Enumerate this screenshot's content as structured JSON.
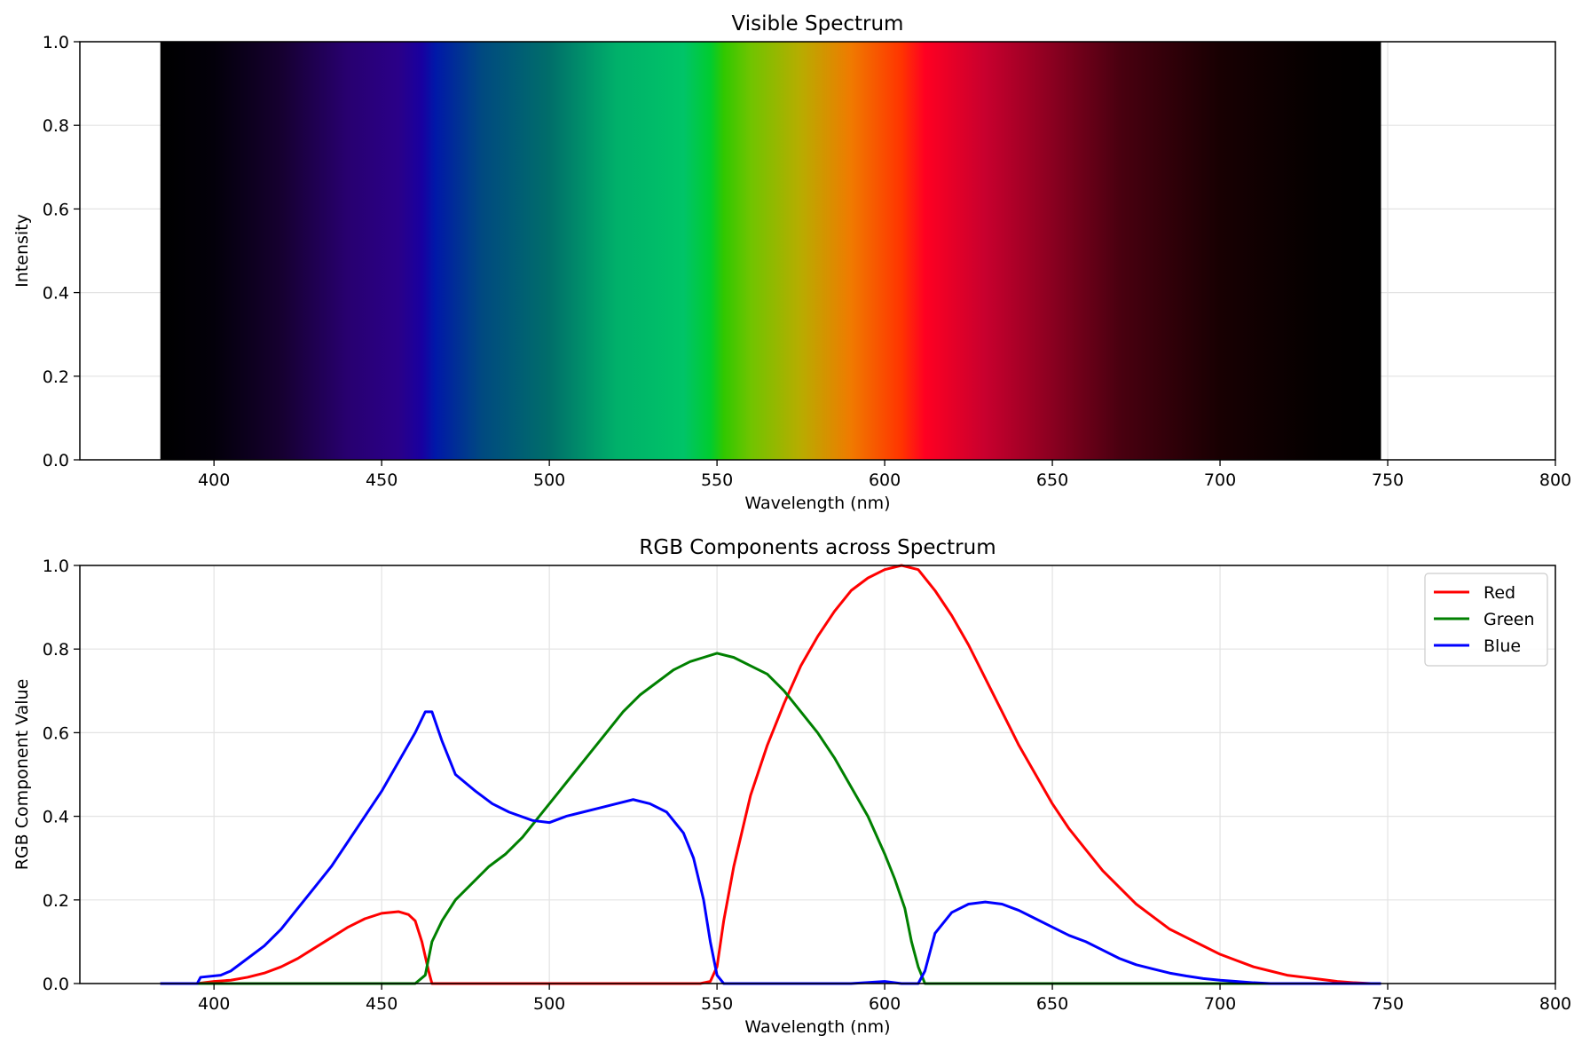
{
  "chart_data": [
    {
      "type": "heatmap",
      "title": "Visible Spectrum",
      "xlabel": "Wavelength (nm)",
      "ylabel": "Intensity",
      "xlim": [
        360,
        800
      ],
      "ylim": [
        0,
        1
      ],
      "xticks": [
        400,
        450,
        500,
        550,
        600,
        650,
        700,
        750,
        800
      ],
      "yticks": [
        0.0,
        0.2,
        0.4,
        0.6,
        0.8,
        1.0
      ],
      "grid": true,
      "band_range": [
        384,
        748
      ],
      "color_stops": [
        {
          "wavelength": 384,
          "color": "#000000"
        },
        {
          "wavelength": 400,
          "color": "#03000a"
        },
        {
          "wavelength": 420,
          "color": "#160030"
        },
        {
          "wavelength": 440,
          "color": "#280070"
        },
        {
          "wavelength": 455,
          "color": "#2a0088"
        },
        {
          "wavelength": 462,
          "color": "#1800a0"
        },
        {
          "wavelength": 466,
          "color": "#0018a8"
        },
        {
          "wavelength": 480,
          "color": "#004a80"
        },
        {
          "wavelength": 500,
          "color": "#006e6a"
        },
        {
          "wavelength": 520,
          "color": "#00b06a"
        },
        {
          "wavelength": 540,
          "color": "#00c468"
        },
        {
          "wavelength": 548,
          "color": "#00cc30"
        },
        {
          "wavelength": 552,
          "color": "#30c800"
        },
        {
          "wavelength": 560,
          "color": "#70c400"
        },
        {
          "wavelength": 575,
          "color": "#b8ac00"
        },
        {
          "wavelength": 590,
          "color": "#f07a00"
        },
        {
          "wavelength": 605,
          "color": "#ff3400"
        },
        {
          "wavelength": 612,
          "color": "#ff0022"
        },
        {
          "wavelength": 630,
          "color": "#c8002e"
        },
        {
          "wavelength": 650,
          "color": "#8a0020"
        },
        {
          "wavelength": 670,
          "color": "#4a0010"
        },
        {
          "wavelength": 700,
          "color": "#180002"
        },
        {
          "wavelength": 730,
          "color": "#040000"
        },
        {
          "wavelength": 748,
          "color": "#000000"
        }
      ]
    },
    {
      "type": "line",
      "title": "RGB Components across Spectrum",
      "xlabel": "Wavelength (nm)",
      "ylabel": "RGB Component Value",
      "xlim": [
        360,
        800
      ],
      "ylim": [
        0,
        1
      ],
      "xticks": [
        400,
        450,
        500,
        550,
        600,
        650,
        700,
        750,
        800
      ],
      "yticks": [
        0.0,
        0.2,
        0.4,
        0.6,
        0.8,
        1.0
      ],
      "grid": true,
      "legend_position": "top-right",
      "series": [
        {
          "name": "Red",
          "color": "#ff0000",
          "points": [
            [
              384,
              0
            ],
            [
              395,
              0
            ],
            [
              400,
              0.005
            ],
            [
              405,
              0.008
            ],
            [
              410,
              0.015
            ],
            [
              415,
              0.025
            ],
            [
              420,
              0.04
            ],
            [
              425,
              0.06
            ],
            [
              430,
              0.085
            ],
            [
              435,
              0.11
            ],
            [
              440,
              0.135
            ],
            [
              445,
              0.155
            ],
            [
              450,
              0.168
            ],
            [
              455,
              0.172
            ],
            [
              458,
              0.165
            ],
            [
              460,
              0.15
            ],
            [
              462,
              0.1
            ],
            [
              464,
              0.03
            ],
            [
              465,
              0
            ],
            [
              470,
              0
            ],
            [
              500,
              0
            ],
            [
              530,
              0
            ],
            [
              545,
              0
            ],
            [
              548,
              0.005
            ],
            [
              550,
              0.04
            ],
            [
              552,
              0.15
            ],
            [
              555,
              0.28
            ],
            [
              560,
              0.45
            ],
            [
              565,
              0.57
            ],
            [
              570,
              0.67
            ],
            [
              575,
              0.76
            ],
            [
              580,
              0.83
            ],
            [
              585,
              0.89
            ],
            [
              590,
              0.94
            ],
            [
              595,
              0.97
            ],
            [
              600,
              0.99
            ],
            [
              605,
              1.0
            ],
            [
              610,
              0.99
            ],
            [
              615,
              0.94
            ],
            [
              620,
              0.88
            ],
            [
              625,
              0.81
            ],
            [
              630,
              0.73
            ],
            [
              635,
              0.65
            ],
            [
              640,
              0.57
            ],
            [
              645,
              0.5
            ],
            [
              650,
              0.43
            ],
            [
              655,
              0.37
            ],
            [
              660,
              0.32
            ],
            [
              665,
              0.27
            ],
            [
              670,
              0.23
            ],
            [
              675,
              0.19
            ],
            [
              680,
              0.16
            ],
            [
              685,
              0.13
            ],
            [
              690,
              0.11
            ],
            [
              695,
              0.09
            ],
            [
              700,
              0.07
            ],
            [
              705,
              0.055
            ],
            [
              710,
              0.04
            ],
            [
              715,
              0.03
            ],
            [
              720,
              0.02
            ],
            [
              725,
              0.015
            ],
            [
              730,
              0.01
            ],
            [
              735,
              0.005
            ],
            [
              740,
              0.002
            ],
            [
              745,
              0
            ]
          ]
        },
        {
          "name": "Green",
          "color": "#008000",
          "points": [
            [
              384,
              0
            ],
            [
              420,
              0
            ],
            [
              460,
              0
            ],
            [
              463,
              0.02
            ],
            [
              465,
              0.1
            ],
            [
              468,
              0.15
            ],
            [
              472,
              0.2
            ],
            [
              477,
              0.24
            ],
            [
              482,
              0.28
            ],
            [
              487,
              0.31
            ],
            [
              492,
              0.35
            ],
            [
              497,
              0.4
            ],
            [
              502,
              0.45
            ],
            [
              507,
              0.5
            ],
            [
              512,
              0.55
            ],
            [
              517,
              0.6
            ],
            [
              522,
              0.65
            ],
            [
              527,
              0.69
            ],
            [
              532,
              0.72
            ],
            [
              537,
              0.75
            ],
            [
              542,
              0.77
            ],
            [
              546,
              0.78
            ],
            [
              550,
              0.79
            ],
            [
              555,
              0.78
            ],
            [
              560,
              0.76
            ],
            [
              565,
              0.74
            ],
            [
              570,
              0.7
            ],
            [
              575,
              0.65
            ],
            [
              580,
              0.6
            ],
            [
              585,
              0.54
            ],
            [
              590,
              0.47
            ],
            [
              595,
              0.4
            ],
            [
              600,
              0.31
            ],
            [
              603,
              0.25
            ],
            [
              606,
              0.18
            ],
            [
              608,
              0.1
            ],
            [
              610,
              0.04
            ],
            [
              612,
              0
            ],
            [
              620,
              0
            ],
            [
              700,
              0
            ],
            [
              748,
              0
            ]
          ]
        },
        {
          "name": "Blue",
          "color": "#0000ff",
          "points": [
            [
              384,
              0
            ],
            [
              395,
              0
            ],
            [
              396,
              0.015
            ],
            [
              402,
              0.02
            ],
            [
              405,
              0.03
            ],
            [
              410,
              0.06
            ],
            [
              415,
              0.09
            ],
            [
              420,
              0.13
            ],
            [
              425,
              0.18
            ],
            [
              430,
              0.23
            ],
            [
              435,
              0.28
            ],
            [
              440,
              0.34
            ],
            [
              445,
              0.4
            ],
            [
              450,
              0.46
            ],
            [
              455,
              0.53
            ],
            [
              460,
              0.6
            ],
            [
              463,
              0.65
            ],
            [
              465,
              0.65
            ],
            [
              468,
              0.58
            ],
            [
              472,
              0.5
            ],
            [
              478,
              0.46
            ],
            [
              483,
              0.43
            ],
            [
              488,
              0.41
            ],
            [
              495,
              0.39
            ],
            [
              500,
              0.385
            ],
            [
              505,
              0.4
            ],
            [
              510,
              0.41
            ],
            [
              515,
              0.42
            ],
            [
              520,
              0.43
            ],
            [
              525,
              0.44
            ],
            [
              530,
              0.43
            ],
            [
              535,
              0.41
            ],
            [
              540,
              0.36
            ],
            [
              543,
              0.3
            ],
            [
              546,
              0.2
            ],
            [
              548,
              0.1
            ],
            [
              550,
              0.02
            ],
            [
              552,
              0
            ],
            [
              560,
              0
            ],
            [
              590,
              0
            ],
            [
              600,
              0.005
            ],
            [
              605,
              0
            ],
            [
              610,
              0
            ],
            [
              612,
              0.03
            ],
            [
              615,
              0.12
            ],
            [
              620,
              0.17
            ],
            [
              625,
              0.19
            ],
            [
              630,
              0.195
            ],
            [
              635,
              0.19
            ],
            [
              640,
              0.175
            ],
            [
              645,
              0.155
            ],
            [
              650,
              0.135
            ],
            [
              655,
              0.115
            ],
            [
              660,
              0.1
            ],
            [
              665,
              0.08
            ],
            [
              670,
              0.06
            ],
            [
              675,
              0.045
            ],
            [
              680,
              0.035
            ],
            [
              685,
              0.025
            ],
            [
              690,
              0.018
            ],
            [
              695,
              0.012
            ],
            [
              700,
              0.008
            ],
            [
              705,
              0.005
            ],
            [
              710,
              0.002
            ],
            [
              715,
              0
            ],
            [
              748,
              0
            ]
          ]
        }
      ]
    }
  ]
}
